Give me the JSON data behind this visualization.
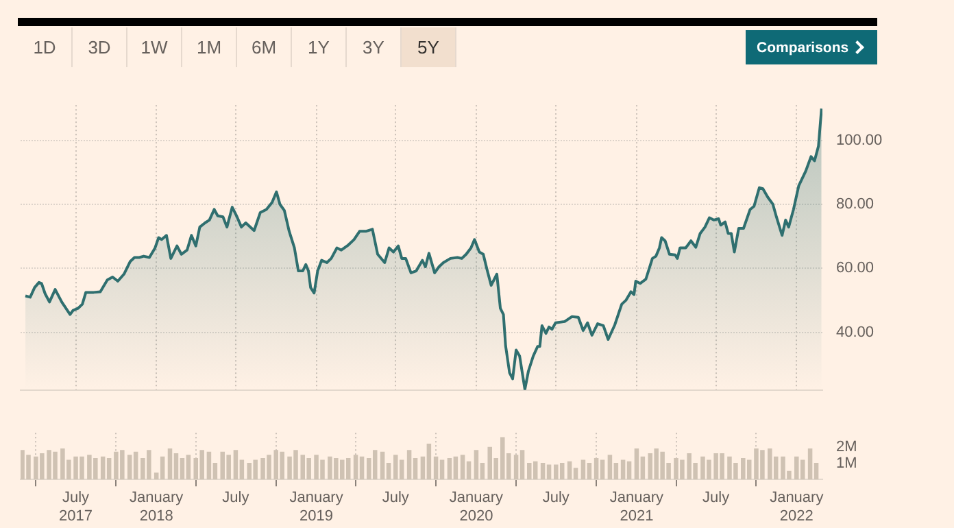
{
  "chart_data": [
    {
      "type": "area",
      "annotations": [
        "1D",
        "3D",
        "1W",
        "1M",
        "6M",
        "1Y",
        "3Y",
        "5Y",
        "Comparisons"
      ],
      "xlim": [
        "2017-02-25",
        "2022-03-01"
      ],
      "xticks": [
        {
          "value": "2017-07-01",
          "label": null
        },
        {
          "value": "2018-01-01",
          "label": null
        },
        {
          "value": "2018-07-01",
          "label": null
        },
        {
          "value": "2019-01-01",
          "label": null
        },
        {
          "value": "2019-07-01",
          "label": null
        },
        {
          "value": "2020-01-01",
          "label": null
        },
        {
          "value": "2020-07-01",
          "label": null
        },
        {
          "value": "2021-01-01",
          "label": null
        },
        {
          "value": "2021-07-01",
          "label": null
        },
        {
          "value": "2022-01-01",
          "label": null
        }
      ],
      "ylim": [
        22,
        111
      ],
      "yticks": [
        {
          "value": 40,
          "label": "40.00"
        },
        {
          "value": 60,
          "label": "60.00"
        },
        {
          "value": 80,
          "label": "80.00"
        },
        {
          "value": 100,
          "label": "100.00"
        }
      ],
      "tick_labels": "y",
      "grid": true,
      "series": [
        {
          "type": "area",
          "color": "#2f6f6f",
          "x": [
            "2017-03-08",
            "2017-03-19",
            "2017-03-29",
            "2017-04-08",
            "2017-04-14",
            "2017-04-22",
            "2017-05-02",
            "2017-05-15",
            "2017-05-30",
            "2017-06-18",
            "2017-06-25",
            "2017-07-06",
            "2017-07-16",
            "2017-07-24",
            "2017-08-11",
            "2017-08-26",
            "2017-09-11",
            "2017-09-23",
            "2017-10-05",
            "2017-10-19",
            "2017-11-02",
            "2017-11-12",
            "2017-11-23",
            "2017-12-03",
            "2017-12-16",
            "2017-12-29",
            "2018-01-06",
            "2018-01-13",
            "2018-01-24",
            "2018-02-03",
            "2018-02-17",
            "2018-02-27",
            "2018-03-12",
            "2018-03-22",
            "2018-04-01",
            "2018-04-10",
            "2018-04-22",
            "2018-05-02",
            "2018-05-13",
            "2018-05-21",
            "2018-06-02",
            "2018-06-11",
            "2018-06-23",
            "2018-07-04",
            "2018-07-14",
            "2018-07-24",
            "2018-08-12",
            "2018-08-26",
            "2018-09-09",
            "2018-09-22",
            "2018-10-02",
            "2018-10-10",
            "2018-10-20",
            "2018-10-31",
            "2018-11-12",
            "2018-11-21",
            "2018-12-01",
            "2018-12-08",
            "2018-12-14",
            "2018-12-19",
            "2018-12-27",
            "2019-01-04",
            "2019-01-13",
            "2019-01-25",
            "2019-02-04",
            "2019-02-17",
            "2019-02-27",
            "2019-03-15",
            "2019-03-28",
            "2019-04-10",
            "2019-04-25",
            "2019-05-09",
            "2019-05-21",
            "2019-06-06",
            "2019-06-16",
            "2019-06-26",
            "2019-07-07",
            "2019-07-15",
            "2019-07-24",
            "2019-08-05",
            "2019-08-17",
            "2019-08-31",
            "2019-09-07",
            "2019-09-15",
            "2019-09-28",
            "2019-10-08",
            "2019-10-18",
            "2019-11-03",
            "2019-11-19",
            "2019-11-29",
            "2019-12-09",
            "2019-12-20",
            "2019-12-28",
            "2020-01-08",
            "2020-01-17",
            "2020-01-25",
            "2020-02-04",
            "2020-02-17",
            "2020-02-25",
            "2020-03-03",
            "2020-03-08",
            "2020-03-17",
            "2020-03-24",
            "2020-04-01",
            "2020-04-09",
            "2020-04-21",
            "2020-04-29",
            "2020-05-10",
            "2020-05-20",
            "2020-05-25",
            "2020-05-30",
            "2020-06-08",
            "2020-06-15",
            "2020-06-22",
            "2020-06-30",
            "2020-07-21",
            "2020-08-06",
            "2020-08-21",
            "2020-09-01",
            "2020-09-11",
            "2020-09-21",
            "2020-10-04",
            "2020-10-17",
            "2020-10-28",
            "2020-11-12",
            "2020-11-28",
            "2020-12-08",
            "2020-12-19",
            "2020-12-26",
            "2020-12-30",
            "2021-01-09",
            "2021-01-22",
            "2021-02-06",
            "2021-02-14",
            "2021-02-22",
            "2021-02-27",
            "2021-03-07",
            "2021-03-17",
            "2021-03-30",
            "2021-04-04",
            "2021-04-10",
            "2021-04-23",
            "2021-05-05",
            "2021-05-16",
            "2021-05-26",
            "2021-06-06",
            "2021-06-16",
            "2021-06-26",
            "2021-07-07",
            "2021-07-12",
            "2021-07-22",
            "2021-07-29",
            "2021-08-05",
            "2021-08-12",
            "2021-08-22",
            "2021-09-02",
            "2021-09-17",
            "2021-09-26",
            "2021-10-08",
            "2021-10-16",
            "2021-10-27",
            "2021-11-08",
            "2021-11-16",
            "2021-11-29",
            "2021-12-07",
            "2021-12-14",
            "2021-12-25",
            "2022-01-06",
            "2022-01-22",
            "2022-02-03",
            "2022-02-11",
            "2022-02-20",
            "2022-02-27"
          ],
          "values": [
            51.4,
            51.0,
            54.0,
            55.6,
            55.3,
            52.1,
            49.5,
            53.4,
            49.5,
            45.6,
            46.9,
            47.5,
            48.8,
            52.5,
            52.5,
            52.7,
            56.4,
            57.3,
            56.0,
            58.2,
            62.1,
            63.4,
            63.4,
            63.8,
            63.4,
            66.4,
            69.6,
            69.0,
            70.3,
            63.1,
            67.0,
            64.4,
            65.7,
            70.3,
            67.0,
            72.9,
            74.2,
            75.1,
            78.4,
            76.4,
            76.1,
            72.9,
            79.1,
            76.1,
            72.9,
            74.2,
            71.8,
            77.4,
            78.4,
            80.6,
            83.9,
            80.0,
            78.1,
            71.6,
            66.4,
            59.2,
            59.2,
            61.2,
            59.2,
            54.0,
            52.3,
            59.2,
            62.5,
            61.8,
            63.1,
            66.4,
            65.7,
            67.3,
            69.0,
            71.6,
            71.6,
            72.2,
            64.4,
            61.8,
            66.4,
            65.1,
            67.0,
            63.1,
            63.1,
            58.6,
            59.2,
            62.5,
            60.5,
            64.7,
            58.6,
            60.5,
            61.8,
            63.1,
            63.4,
            63.1,
            64.4,
            66.4,
            69.0,
            65.1,
            64.4,
            59.9,
            54.7,
            58.2,
            47.5,
            45.6,
            35.8,
            27.4,
            25.5,
            34.5,
            32.6,
            22.2,
            27.9,
            32.6,
            35.6,
            35.6,
            42.1,
            39.7,
            41.7,
            41.0,
            43.0,
            43.4,
            44.9,
            44.7,
            40.6,
            43.0,
            39.1,
            42.7,
            42.1,
            37.8,
            42.3,
            48.8,
            50.1,
            52.7,
            51.8,
            56.0,
            55.3,
            56.6,
            63.1,
            63.8,
            66.4,
            69.6,
            68.6,
            64.4,
            64.2,
            63.1,
            66.4,
            66.4,
            68.6,
            66.6,
            70.9,
            72.9,
            75.8,
            75.1,
            75.5,
            73.5,
            74.5,
            70.9,
            70.9,
            65.1,
            72.5,
            72.5,
            78.4,
            79.4,
            85.2,
            84.9,
            82.3,
            80.0,
            76.1,
            70.3,
            75.1,
            72.9,
            78.4,
            85.8,
            90.4,
            94.9,
            93.6,
            98.2,
            109.9
          ]
        }
      ]
    },
    {
      "type": "bar",
      "xlim": [
        "2017-02-25",
        "2022-03-01"
      ],
      "xticks": [
        {
          "value": "2017-07-01",
          "label": "July 2017"
        },
        {
          "value": "2018-01-01",
          "label": "January 2018"
        },
        {
          "value": "2018-07-01",
          "label": "July"
        },
        {
          "value": "2019-01-01",
          "label": "January 2019"
        },
        {
          "value": "2019-07-01",
          "label": "July"
        },
        {
          "value": "2020-01-01",
          "label": "January 2020"
        },
        {
          "value": "2020-07-01",
          "label": "July"
        },
        {
          "value": "2021-01-01",
          "label": "January 2021"
        },
        {
          "value": "2021-07-01",
          "label": "July"
        },
        {
          "value": "2022-01-01",
          "label": "January 2022"
        }
      ],
      "ylim": [
        0,
        2.9
      ],
      "yticks": [
        {
          "value": 1,
          "label": "1M"
        },
        {
          "value": 2,
          "label": "2M"
        }
      ],
      "grid": "x",
      "series": [
        {
          "type": "bar",
          "color": "#cfc2b3",
          "x": [
            "2017-03-01",
            "2017-03-15",
            "2017-04-01",
            "2017-04-15",
            "2017-05-01",
            "2017-05-15",
            "2017-06-01",
            "2017-06-15",
            "2017-07-01",
            "2017-07-15",
            "2017-08-01",
            "2017-08-15",
            "2017-09-01",
            "2017-09-15",
            "2017-10-01",
            "2017-10-15",
            "2017-11-01",
            "2017-11-15",
            "2017-12-01",
            "2017-12-15",
            "2018-01-01",
            "2018-01-15",
            "2018-02-01",
            "2018-02-15",
            "2018-03-01",
            "2018-03-15",
            "2018-04-01",
            "2018-04-15",
            "2018-05-01",
            "2018-05-15",
            "2018-06-01",
            "2018-06-15",
            "2018-07-01",
            "2018-07-15",
            "2018-08-01",
            "2018-08-15",
            "2018-09-01",
            "2018-09-15",
            "2018-10-01",
            "2018-10-15",
            "2018-11-01",
            "2018-11-15",
            "2018-12-01",
            "2018-12-15",
            "2019-01-01",
            "2019-01-15",
            "2019-02-01",
            "2019-02-15",
            "2019-03-01",
            "2019-03-15",
            "2019-04-01",
            "2019-04-15",
            "2019-05-01",
            "2019-05-15",
            "2019-06-01",
            "2019-06-15",
            "2019-07-01",
            "2019-07-15",
            "2019-08-01",
            "2019-08-15",
            "2019-09-01",
            "2019-09-15",
            "2019-10-01",
            "2019-10-15",
            "2019-11-01",
            "2019-11-15",
            "2019-12-01",
            "2019-12-15",
            "2020-01-01",
            "2020-01-15",
            "2020-02-01",
            "2020-02-15",
            "2020-03-01",
            "2020-03-15",
            "2020-04-01",
            "2020-04-15",
            "2020-05-01",
            "2020-05-15",
            "2020-06-01",
            "2020-06-15",
            "2020-07-01",
            "2020-07-15",
            "2020-08-01",
            "2020-08-15",
            "2020-09-01",
            "2020-09-15",
            "2020-10-01",
            "2020-10-15",
            "2020-11-01",
            "2020-11-15",
            "2020-12-01",
            "2020-12-15",
            "2021-01-01",
            "2021-01-15",
            "2021-02-01",
            "2021-02-15",
            "2021-03-01",
            "2021-03-15",
            "2021-04-01",
            "2021-04-15",
            "2021-05-01",
            "2021-05-15",
            "2021-06-01",
            "2021-06-15",
            "2021-07-01",
            "2021-07-15",
            "2021-08-01",
            "2021-08-15",
            "2021-09-01",
            "2021-09-15",
            "2021-10-01",
            "2021-10-15",
            "2021-11-01",
            "2021-11-15",
            "2021-12-01",
            "2021-12-15",
            "2022-01-01",
            "2022-01-15",
            "2022-02-01",
            "2022-02-15"
          ],
          "values": [
            1.8,
            1.5,
            1.4,
            1.6,
            1.8,
            1.7,
            1.9,
            1.2,
            1.4,
            1.4,
            1.5,
            1.3,
            1.4,
            1.3,
            1.7,
            1.8,
            1.5,
            1.7,
            1.3,
            1.8,
            0.4,
            1.4,
            1.9,
            1.6,
            1.3,
            1.5,
            1.3,
            1.8,
            1.7,
            1.0,
            1.7,
            1.5,
            1.8,
            1.2,
            1.0,
            1.2,
            1.3,
            1.5,
            1.8,
            1.7,
            1.4,
            1.8,
            1.5,
            1.3,
            1.5,
            1.2,
            1.4,
            1.3,
            1.2,
            1.3,
            1.5,
            1.4,
            1.3,
            1.8,
            1.7,
            1.0,
            1.5,
            1.2,
            1.8,
            1.3,
            1.4,
            2.2,
            1.4,
            1.2,
            1.3,
            1.4,
            1.5,
            1.1,
            1.8,
            1.0,
            2.0,
            1.3,
            2.6,
            1.6,
            1.5,
            1.8,
            1.0,
            1.1,
            1.0,
            0.9,
            0.9,
            1.0,
            1.1,
            0.7,
            1.2,
            1.0,
            1.3,
            1.2,
            1.5,
            1.0,
            1.2,
            1.1,
            1.9,
            1.4,
            1.6,
            1.9,
            1.7,
            1.0,
            1.3,
            1.2,
            1.6,
            1.0,
            1.4,
            1.2,
            1.6,
            1.6,
            1.4,
            1.0,
            1.3,
            1.2,
            1.9,
            1.8,
            1.9,
            1.4,
            1.4,
            0.5,
            1.4,
            1.2,
            1.9,
            1.0
          ]
        }
      ]
    }
  ]
}
